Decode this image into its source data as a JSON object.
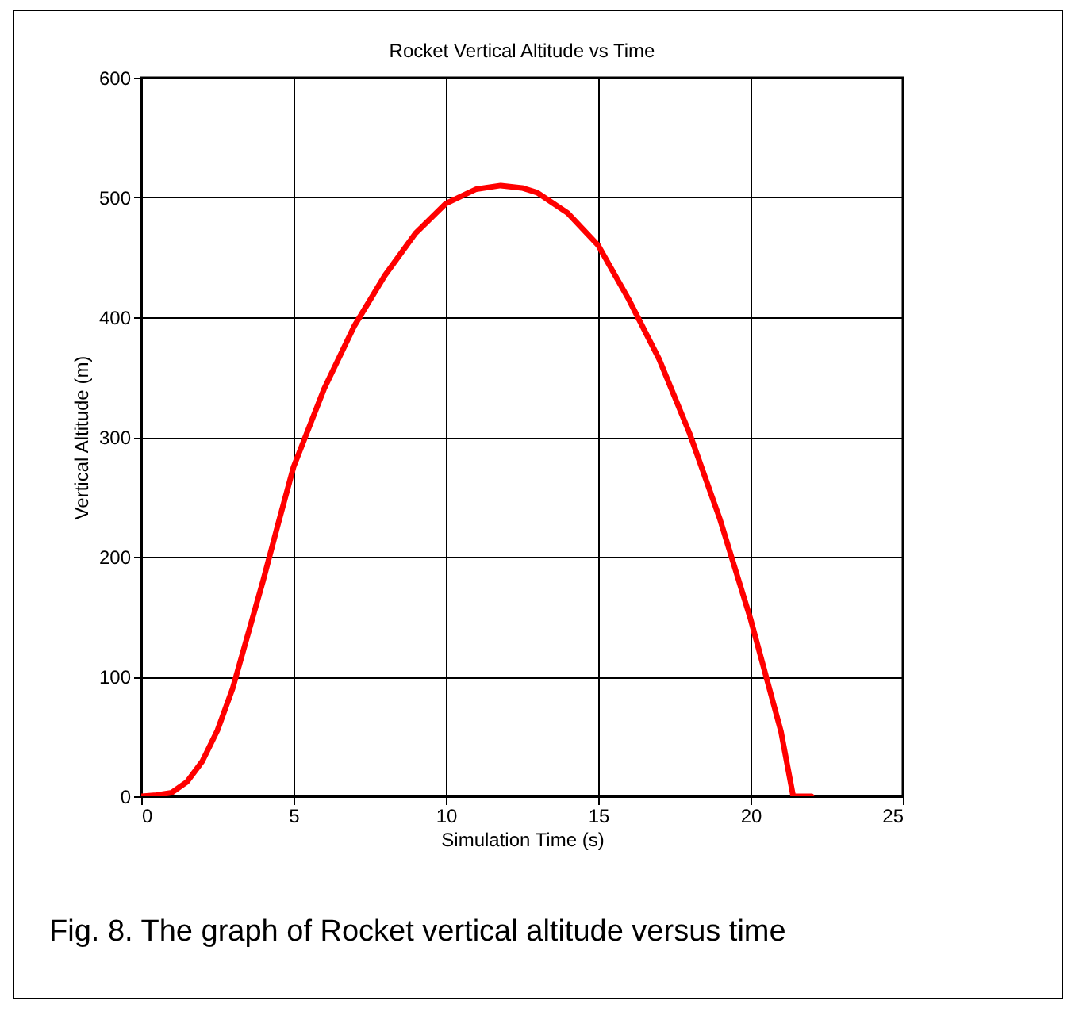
{
  "chart_data": {
    "type": "line",
    "title": "Rocket Vertical Altitude vs Time",
    "xlabel": "Simulation Time (s)",
    "ylabel": "Vertical Altitude (m)",
    "annotations": [
      "Fig. 8. The graph of Rocket vertical altitude versus time"
    ],
    "x": [
      0,
      0.5,
      1,
      1.5,
      2,
      2.5,
      3,
      3.5,
      4,
      4.5,
      5,
      6,
      7,
      8,
      9,
      10,
      11,
      11.8,
      12.5,
      13,
      14,
      15,
      16,
      17,
      18,
      19,
      20,
      21,
      21.4,
      22
    ],
    "series": [
      {
        "color": "#ff0000",
        "values": [
          0,
          1,
          3,
          12,
          29,
          55,
          90,
          135,
          180,
          228,
          275,
          340,
          393,
          435,
          470,
          495,
          507,
          510,
          508,
          504,
          487,
          460,
          415,
          365,
          303,
          231,
          148,
          54,
          0,
          0
        ]
      }
    ],
    "xlim": [
      0,
      25
    ],
    "ylim": [
      0,
      600
    ],
    "xticks": [
      0,
      5,
      10,
      15,
      20,
      25
    ],
    "yticks": [
      0,
      100,
      200,
      300,
      400,
      500,
      600
    ],
    "grid": true,
    "marker": "none",
    "line_style": "solid"
  }
}
